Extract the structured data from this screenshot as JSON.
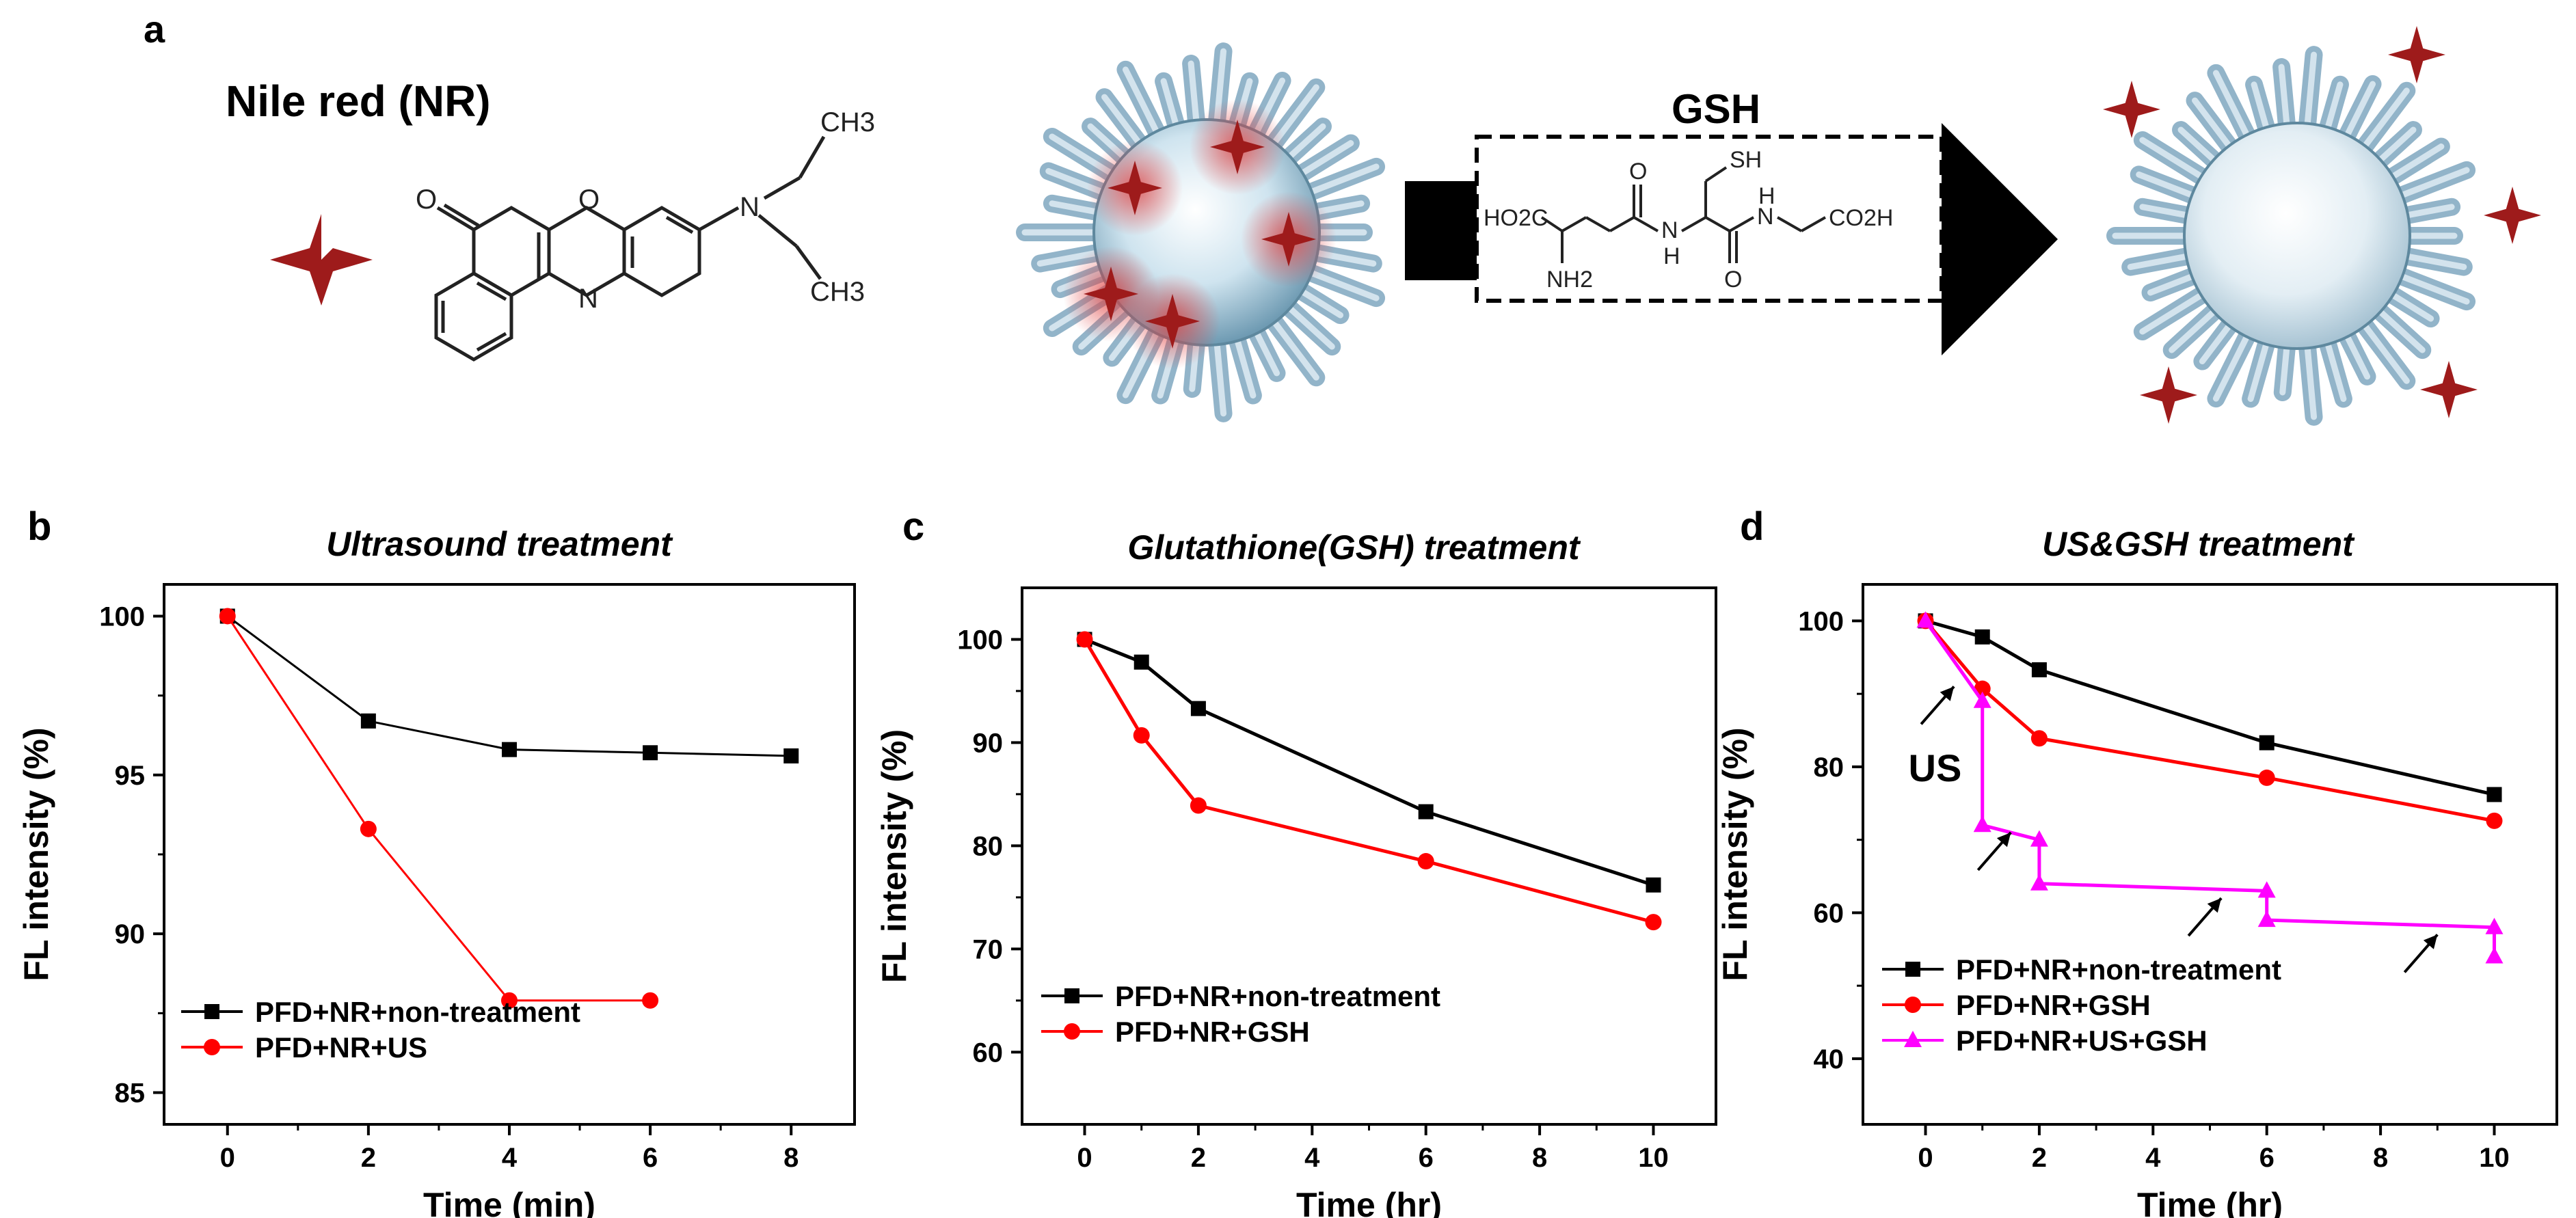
{
  "figure": {
    "panel_labels": {
      "a": "a",
      "b": "b",
      "c": "c",
      "d": "d"
    },
    "panel_a": {
      "dye_name": "Nile red (NR)",
      "arrow_label": "GSH",
      "nr_labels": {
        "o": "O",
        "n_ring": "N",
        "o_ring": "O",
        "n_amine": "N",
        "ch3_top": "CH3",
        "ch3_bottom": "CH3"
      },
      "gsh_labels": {
        "ho2c": "HO2C",
        "nh2": "NH2",
        "o1": "O",
        "nh": "N",
        "h1": "H",
        "sh": "SH",
        "o2": "O",
        "n2": "N",
        "h2": "H",
        "co2h": "CO2H"
      }
    },
    "colors": {
      "black_series": "#000000",
      "red_series": "#ff0000",
      "magenta_series": "#ff00ff",
      "star": "#9e1b1b",
      "micelle": "#8fb6cc"
    }
  },
  "chart_data": [
    {
      "id": "b",
      "type": "line",
      "title": "Ultrasound treatment",
      "xlabel": "Time (min)",
      "ylabel": "FL intensity (%)",
      "xlim": [
        -0.9,
        8.9
      ],
      "ylim": [
        84,
        101
      ],
      "xticks": [
        0,
        2,
        4,
        6,
        8
      ],
      "yticks": [
        85,
        90,
        95,
        100
      ],
      "legend_position": "bottom-left",
      "series": [
        {
          "name": "PFD+NR+non-treatment",
          "color": "#000000",
          "marker": "square",
          "x": [
            0,
            2,
            4,
            6,
            8
          ],
          "y": [
            100,
            96.7,
            95.8,
            95.7,
            95.6
          ]
        },
        {
          "name": "PFD+NR+US",
          "color": "#ff0000",
          "marker": "circle",
          "x": [
            0,
            2,
            4,
            6
          ],
          "y": [
            100,
            93.3,
            87.9,
            87.9
          ]
        }
      ]
    },
    {
      "id": "c",
      "type": "line",
      "title": "Glutathione(GSH) treatment",
      "xlabel": "Time (hr)",
      "ylabel": "FL intensity (%)",
      "xlim": [
        -1.1,
        11.1
      ],
      "ylim": [
        53,
        105
      ],
      "xticks": [
        0,
        2,
        4,
        6,
        8,
        10
      ],
      "yticks": [
        60,
        70,
        80,
        90,
        100
      ],
      "legend_position": "bottom-left",
      "series": [
        {
          "name": "PFD+NR+non-treatment",
          "color": "#000000",
          "marker": "square",
          "x": [
            0,
            1,
            2,
            6,
            10
          ],
          "y": [
            100,
            97.8,
            93.3,
            83.3,
            76.2
          ]
        },
        {
          "name": "PFD+NR+GSH",
          "color": "#ff0000",
          "marker": "circle",
          "x": [
            0,
            1,
            2,
            6,
            10
          ],
          "y": [
            100,
            90.7,
            83.9,
            78.5,
            72.6
          ]
        }
      ]
    },
    {
      "id": "d",
      "type": "line",
      "title": "US&GSH treatment",
      "xlabel": "Time (hr)",
      "ylabel": "FL intensity (%)",
      "xlim": [
        -1.1,
        11.1
      ],
      "ylim": [
        31,
        105
      ],
      "xticks": [
        0,
        2,
        4,
        6,
        8,
        10
      ],
      "yticks": [
        40,
        60,
        80,
        100
      ],
      "legend_position": "bottom-left",
      "annotation": "US",
      "arrows_at": [
        [
          0.5,
          91
        ],
        [
          1.5,
          71
        ],
        [
          5.2,
          62
        ],
        [
          9.0,
          57
        ]
      ],
      "series": [
        {
          "name": "PFD+NR+non-treatment",
          "color": "#000000",
          "marker": "square",
          "x": [
            0,
            1,
            2,
            6,
            10
          ],
          "y": [
            100,
            97.8,
            93.3,
            83.3,
            76.2
          ]
        },
        {
          "name": "PFD+NR+GSH",
          "color": "#ff0000",
          "marker": "circle",
          "x": [
            0,
            1,
            2,
            6,
            10
          ],
          "y": [
            100,
            90.7,
            83.9,
            78.5,
            72.6
          ]
        },
        {
          "name": "PFD+NR+US+GSH",
          "color": "#ff00ff",
          "marker": "triangle",
          "x": [
            0,
            1,
            1,
            2,
            2,
            6,
            6,
            10,
            10
          ],
          "y": [
            100,
            89,
            72,
            70,
            64,
            63,
            59,
            58,
            54
          ]
        }
      ]
    }
  ]
}
